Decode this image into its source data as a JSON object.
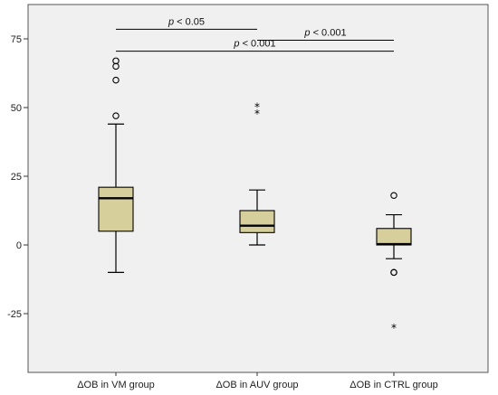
{
  "chart_data": {
    "type": "box",
    "title": "",
    "xlabel": "",
    "ylabel": "",
    "ylim": [
      -45,
      85
    ],
    "yticks": [
      75,
      50,
      25,
      0,
      -25
    ],
    "ytick_labels": [
      "75",
      "50",
      "25",
      "0",
      "-25"
    ],
    "grid": false,
    "plot_background": "#f0f0f0",
    "box_fill": "#d6cf9b",
    "categories": [
      "ΔOB in VM group",
      "ΔOB in AUV group",
      "ΔOB in CTRL group"
    ],
    "boxes": [
      {
        "category": "ΔOB in VM group",
        "whisker_low": -10,
        "q1": 5,
        "median": 17,
        "q3": 21,
        "whisker_high": 44,
        "outliers": [
          47,
          60,
          65,
          67
        ],
        "extremes": []
      },
      {
        "category": "ΔOB in AUV group",
        "whisker_low": 0,
        "q1": 4.5,
        "median": 7,
        "q3": 12.5,
        "whisker_high": 20,
        "outliers": [],
        "extremes": [
          48,
          50.5
        ]
      },
      {
        "category": "ΔOB in CTRL group",
        "whisker_low": -5,
        "q1": 0,
        "median": 0.3,
        "q3": 6,
        "whisker_high": 11,
        "outliers": [
          18,
          -10,
          -10
        ],
        "extremes": [
          -30
        ]
      }
    ],
    "significance": [
      {
        "from": 0,
        "to": 1,
        "y": 78.5,
        "p_symbol": "p",
        "p_text": " < 0.05"
      },
      {
        "from": 1,
        "to": 2,
        "y": 74.5,
        "p_symbol": "p",
        "p_text": " < 0.001"
      },
      {
        "from": 0,
        "to": 2,
        "y": 70.5,
        "p_symbol": "p",
        "p_text": " < 0.001"
      }
    ]
  }
}
